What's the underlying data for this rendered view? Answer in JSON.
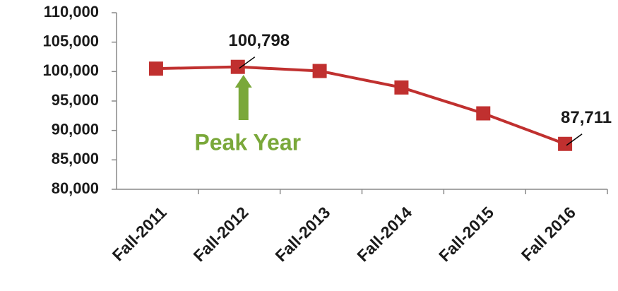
{
  "chart_data": {
    "type": "line",
    "categories": [
      "Fall-2011",
      "Fall-2012",
      "Fall-2013",
      "Fall-2014",
      "Fall-2015",
      "Fall 2016"
    ],
    "series": [
      {
        "name": null,
        "color": "#c0302f",
        "values": [
          100500,
          100798,
          100100,
          97300,
          92900,
          87711
        ],
        "value_labels": [
          null,
          "100,798",
          null,
          null,
          null,
          "87,711"
        ]
      }
    ],
    "ylim": [
      80000,
      110000
    ],
    "yticks": [
      {
        "value": 80000,
        "label": "80,000"
      },
      {
        "value": 85000,
        "label": "85,000"
      },
      {
        "value": 90000,
        "label": "90,000"
      },
      {
        "value": 95000,
        "label": "95,000"
      },
      {
        "value": 100000,
        "label": "100,000"
      },
      {
        "value": 105000,
        "label": "105,000"
      },
      {
        "value": 110000,
        "label": "110,000"
      }
    ],
    "annotations": [
      {
        "text": "Peak Year",
        "color": "#7aa83a"
      }
    ],
    "grid": false
  }
}
